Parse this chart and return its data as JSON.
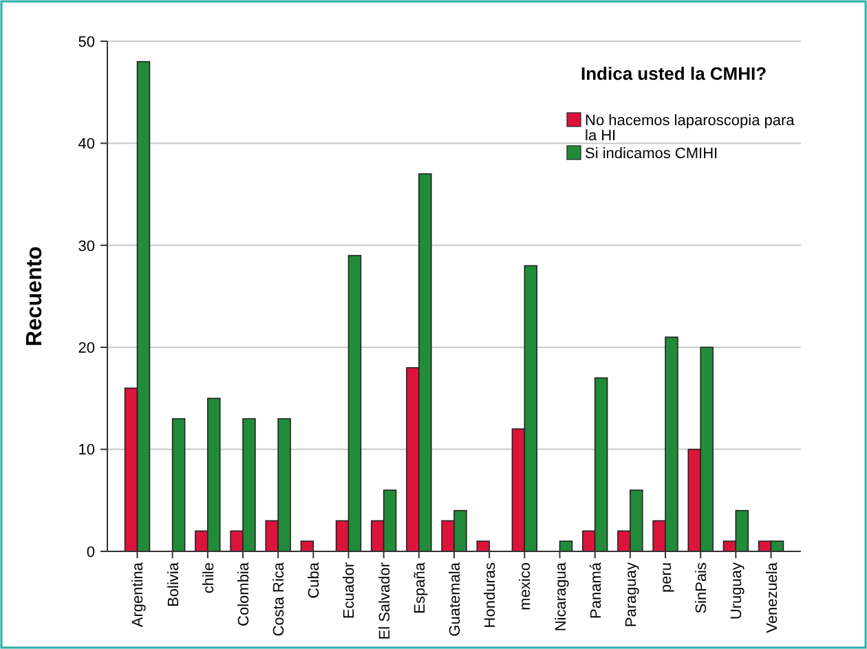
{
  "chart_data": {
    "type": "bar",
    "ylabel": "Recuento",
    "legend_title": "Indica usted la CMHI?",
    "legend": "top right",
    "grid": "y",
    "categories": [
      "Argentina",
      "Bolivia",
      "chile",
      "Colombia",
      "Costa Rica",
      "Cuba",
      "Ecuador",
      "El Salvador",
      "España",
      "Guatemala",
      "Honduras",
      "mexico",
      "Nicaragua",
      "Panamá",
      "Paraguay",
      "peru",
      "SinPais",
      "Uruguay",
      "Venezuela"
    ],
    "series": [
      {
        "name": "No hacemos laparoscopia para la HI",
        "color": "#dc143c",
        "values": [
          16,
          0,
          2,
          2,
          3,
          1,
          3,
          3,
          18,
          3,
          1,
          12,
          0,
          2,
          2,
          3,
          10,
          1,
          1
        ]
      },
      {
        "name": "Si indicamos CMIHI",
        "color": "#228b3a",
        "values": [
          48,
          13,
          15,
          13,
          13,
          0,
          29,
          6,
          37,
          4,
          0,
          28,
          1,
          17,
          6,
          21,
          20,
          4,
          1
        ]
      }
    ],
    "ylim": [
      0,
      50
    ],
    "yticks": [
      0,
      10,
      20,
      30,
      40,
      50
    ]
  }
}
